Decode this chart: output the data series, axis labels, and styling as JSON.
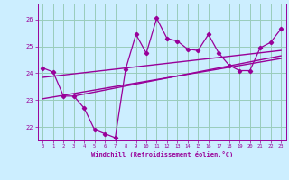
{
  "title": "",
  "xlabel": "Windchill (Refroidissement éolien,°C)",
  "background_color": "#cceeff",
  "grid_color": "#99ccbb",
  "line_color": "#990099",
  "x_values": [
    0,
    1,
    2,
    3,
    4,
    5,
    6,
    7,
    8,
    9,
    10,
    11,
    12,
    13,
    14,
    15,
    16,
    17,
    18,
    19,
    20,
    21,
    22,
    23
  ],
  "y_values": [
    24.2,
    24.05,
    23.15,
    23.15,
    22.7,
    21.9,
    21.75,
    21.6,
    24.15,
    25.45,
    24.75,
    26.05,
    25.3,
    25.2,
    24.9,
    24.85,
    25.45,
    24.75,
    24.3,
    24.1,
    24.1,
    24.95,
    25.15,
    25.65
  ],
  "ylim": [
    21.5,
    26.6
  ],
  "yticks": [
    22,
    23,
    24,
    25,
    26
  ],
  "xlim": [
    -0.5,
    23.5
  ],
  "trend1_x": [
    0,
    23
  ],
  "trend1_y": [
    23.85,
    24.85
  ],
  "trend2_x": [
    0,
    23
  ],
  "trend2_y": [
    23.05,
    24.55
  ],
  "trend3_x": [
    3,
    23
  ],
  "trend3_y": [
    23.15,
    24.65
  ]
}
